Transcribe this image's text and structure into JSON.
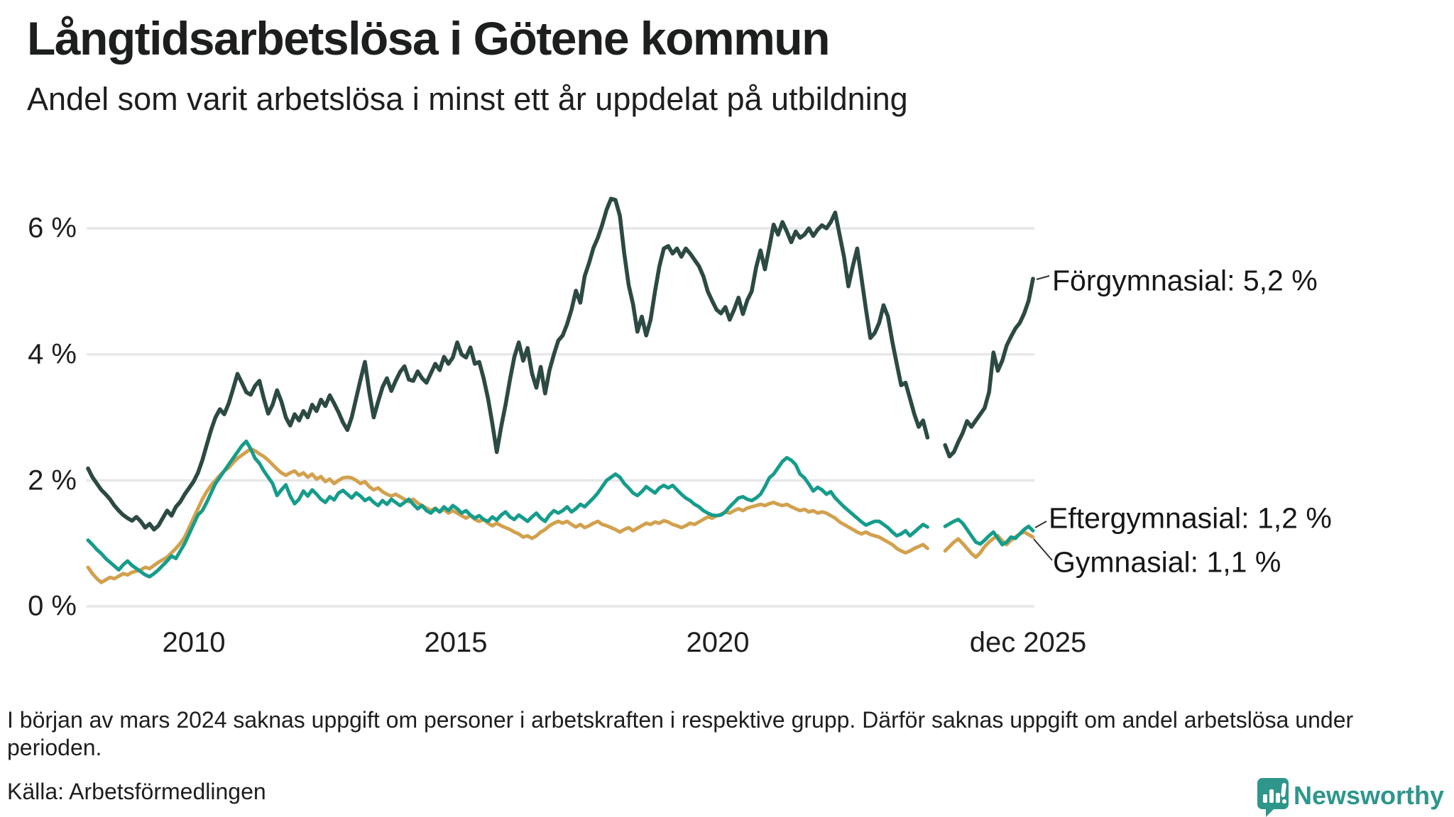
{
  "header": {
    "title": "Långtidsarbetslösa i Götene kommun",
    "subtitle": "Andel som varit arbetslösa i minst ett år uppdelat på utbildning"
  },
  "chart_data": {
    "type": "line",
    "title": "Långtidsarbetslösa i Götene kommun",
    "subtitle": "Andel som varit arbetslösa i minst ett år uppdelat på utbildning",
    "x_unit": "month",
    "x_range": [
      "2008-01",
      "2025-12"
    ],
    "ylim": [
      0,
      6.8
    ],
    "grid": "horizontal",
    "y_tick_labels": [
      "0 %",
      "2 %",
      "4 %",
      "6 %"
    ],
    "y_tick_values": [
      0,
      2,
      4,
      6
    ],
    "x_tick_labels": [
      "2010",
      "2015",
      "2020",
      "dec 2025"
    ],
    "x_tick_month_index": [
      24,
      84,
      144,
      215
    ],
    "missing_data_months": [
      "2024-01",
      "2024-02",
      "2024-03"
    ],
    "series": [
      {
        "name": "Förgymnasial",
        "label": "Förgymnasial: 5,2 %",
        "end_value": "5,2 %",
        "color": "#2c4a43",
        "values": [
          2.19,
          2.05,
          1.95,
          1.85,
          1.78,
          1.7,
          1.6,
          1.52,
          1.45,
          1.4,
          1.36,
          1.42,
          1.35,
          1.25,
          1.31,
          1.22,
          1.28,
          1.4,
          1.52,
          1.44,
          1.58,
          1.66,
          1.78,
          1.88,
          1.98,
          2.12,
          2.32,
          2.56,
          2.8,
          3.0,
          3.13,
          3.05,
          3.22,
          3.45,
          3.69,
          3.55,
          3.4,
          3.36,
          3.5,
          3.58,
          3.3,
          3.06,
          3.2,
          3.43,
          3.25,
          3.0,
          2.87,
          3.05,
          2.95,
          3.1,
          3.0,
          3.2,
          3.1,
          3.28,
          3.18,
          3.35,
          3.22,
          3.08,
          2.92,
          2.8,
          3.0,
          3.3,
          3.6,
          3.88,
          3.4,
          3.0,
          3.25,
          3.48,
          3.62,
          3.42,
          3.58,
          3.72,
          3.81,
          3.6,
          3.58,
          3.73,
          3.62,
          3.55,
          3.7,
          3.85,
          3.75,
          3.96,
          3.85,
          3.95,
          4.19,
          4.0,
          3.95,
          4.11,
          3.85,
          3.88,
          3.62,
          3.3,
          2.9,
          2.45,
          2.85,
          3.2,
          3.6,
          3.96,
          4.19,
          3.9,
          4.1,
          3.7,
          3.47,
          3.8,
          3.38,
          3.75,
          4.0,
          4.22,
          4.3,
          4.48,
          4.71,
          5.01,
          4.82,
          5.24,
          5.45,
          5.69,
          5.85,
          6.06,
          6.3,
          6.47,
          6.45,
          6.2,
          5.6,
          5.1,
          4.8,
          4.36,
          4.6,
          4.3,
          4.55,
          5.0,
          5.4,
          5.68,
          5.72,
          5.6,
          5.68,
          5.55,
          5.68,
          5.6,
          5.5,
          5.4,
          5.24,
          5.0,
          4.85,
          4.71,
          4.65,
          4.75,
          4.55,
          4.71,
          4.9,
          4.64,
          4.86,
          5.0,
          5.38,
          5.65,
          5.35,
          5.7,
          6.06,
          5.9,
          6.1,
          5.95,
          5.78,
          5.95,
          5.85,
          5.9,
          6.0,
          5.88,
          5.98,
          6.05,
          6.0,
          6.1,
          6.25,
          5.9,
          5.55,
          5.08,
          5.4,
          5.68,
          5.2,
          4.71,
          4.26,
          4.34,
          4.5,
          4.78,
          4.6,
          4.2,
          3.85,
          3.51,
          3.55,
          3.3,
          3.05,
          2.85,
          2.95,
          2.68,
          null,
          null,
          null,
          2.56,
          2.38,
          2.45,
          2.61,
          2.75,
          2.94,
          2.85,
          2.95,
          3.05,
          3.15,
          3.4,
          4.03,
          3.74,
          3.9,
          4.14,
          4.28,
          4.41,
          4.5,
          4.65,
          4.85,
          5.2
        ]
      },
      {
        "name": "Eftergymnasial",
        "label": "Eftergymnasial: 1,2 %",
        "end_value": "1,2 %",
        "color": "#169c8b",
        "values": [
          1.05,
          0.98,
          0.9,
          0.84,
          0.76,
          0.7,
          0.64,
          0.58,
          0.66,
          0.72,
          0.65,
          0.6,
          0.55,
          0.5,
          0.47,
          0.52,
          0.58,
          0.65,
          0.72,
          0.8,
          0.76,
          0.88,
          1.0,
          1.15,
          1.3,
          1.45,
          1.52,
          1.65,
          1.8,
          1.95,
          2.05,
          2.15,
          2.25,
          2.35,
          2.45,
          2.55,
          2.62,
          2.5,
          2.35,
          2.27,
          2.15,
          2.05,
          1.95,
          1.76,
          1.85,
          1.93,
          1.75,
          1.63,
          1.7,
          1.83,
          1.75,
          1.85,
          1.78,
          1.7,
          1.65,
          1.74,
          1.69,
          1.8,
          1.84,
          1.78,
          1.72,
          1.8,
          1.75,
          1.68,
          1.72,
          1.65,
          1.6,
          1.68,
          1.62,
          1.7,
          1.65,
          1.6,
          1.65,
          1.7,
          1.62,
          1.55,
          1.6,
          1.52,
          1.48,
          1.55,
          1.5,
          1.58,
          1.52,
          1.6,
          1.55,
          1.48,
          1.52,
          1.45,
          1.4,
          1.44,
          1.38,
          1.35,
          1.42,
          1.37,
          1.45,
          1.5,
          1.42,
          1.38,
          1.45,
          1.4,
          1.35,
          1.42,
          1.48,
          1.4,
          1.35,
          1.45,
          1.52,
          1.48,
          1.52,
          1.58,
          1.5,
          1.55,
          1.62,
          1.58,
          1.65,
          1.72,
          1.8,
          1.9,
          2.0,
          2.05,
          2.1,
          2.05,
          1.95,
          1.88,
          1.8,
          1.76,
          1.82,
          1.9,
          1.85,
          1.8,
          1.88,
          1.92,
          1.88,
          1.92,
          1.85,
          1.78,
          1.72,
          1.68,
          1.62,
          1.58,
          1.52,
          1.48,
          1.45,
          1.44,
          1.45,
          1.5,
          1.58,
          1.65,
          1.72,
          1.74,
          1.7,
          1.68,
          1.72,
          1.78,
          1.9,
          2.04,
          2.1,
          2.2,
          2.3,
          2.36,
          2.32,
          2.25,
          2.1,
          2.04,
          1.94,
          1.83,
          1.89,
          1.85,
          1.78,
          1.82,
          1.72,
          1.65,
          1.58,
          1.52,
          1.46,
          1.4,
          1.34,
          1.29,
          1.32,
          1.35,
          1.35,
          1.3,
          1.25,
          1.18,
          1.12,
          1.15,
          1.2,
          1.12,
          1.18,
          1.24,
          1.3,
          1.26,
          null,
          null,
          null,
          1.27,
          1.31,
          1.35,
          1.38,
          1.32,
          1.22,
          1.12,
          1.02,
          0.99,
          1.05,
          1.12,
          1.18,
          1.08,
          0.98,
          1.02,
          1.1,
          1.08,
          1.15,
          1.22,
          1.27,
          1.2
        ]
      },
      {
        "name": "Gymnasial",
        "label": "Gymnasial: 1,1 %",
        "end_value": "1,1 %",
        "color": "#d2a14e",
        "values": [
          0.62,
          0.52,
          0.44,
          0.38,
          0.42,
          0.46,
          0.44,
          0.48,
          0.52,
          0.5,
          0.54,
          0.56,
          0.58,
          0.62,
          0.6,
          0.65,
          0.7,
          0.74,
          0.78,
          0.85,
          0.92,
          1.0,
          1.1,
          1.25,
          1.4,
          1.55,
          1.7,
          1.82,
          1.92,
          2.0,
          2.08,
          2.15,
          2.2,
          2.28,
          2.35,
          2.4,
          2.45,
          2.5,
          2.47,
          2.42,
          2.38,
          2.32,
          2.25,
          2.18,
          2.12,
          2.08,
          2.12,
          2.15,
          2.08,
          2.12,
          2.05,
          2.1,
          2.02,
          2.06,
          1.98,
          2.02,
          1.95,
          2.0,
          2.04,
          2.05,
          2.04,
          2.0,
          1.95,
          1.98,
          1.9,
          1.85,
          1.88,
          1.82,
          1.78,
          1.75,
          1.78,
          1.74,
          1.7,
          1.66,
          1.7,
          1.64,
          1.6,
          1.56,
          1.52,
          1.56,
          1.5,
          1.54,
          1.48,
          1.52,
          1.48,
          1.44,
          1.4,
          1.44,
          1.38,
          1.35,
          1.38,
          1.32,
          1.28,
          1.32,
          1.28,
          1.25,
          1.22,
          1.18,
          1.15,
          1.1,
          1.12,
          1.08,
          1.12,
          1.18,
          1.22,
          1.28,
          1.32,
          1.35,
          1.32,
          1.35,
          1.3,
          1.26,
          1.3,
          1.25,
          1.28,
          1.32,
          1.35,
          1.3,
          1.28,
          1.25,
          1.22,
          1.18,
          1.22,
          1.25,
          1.2,
          1.24,
          1.28,
          1.32,
          1.3,
          1.34,
          1.32,
          1.36,
          1.34,
          1.3,
          1.28,
          1.25,
          1.28,
          1.32,
          1.3,
          1.34,
          1.38,
          1.42,
          1.4,
          1.44,
          1.46,
          1.5,
          1.48,
          1.52,
          1.55,
          1.52,
          1.56,
          1.58,
          1.6,
          1.62,
          1.6,
          1.63,
          1.65,
          1.62,
          1.6,
          1.62,
          1.58,
          1.55,
          1.52,
          1.54,
          1.5,
          1.52,
          1.48,
          1.5,
          1.48,
          1.44,
          1.4,
          1.34,
          1.3,
          1.26,
          1.22,
          1.18,
          1.15,
          1.18,
          1.14,
          1.12,
          1.1,
          1.06,
          1.02,
          0.98,
          0.92,
          0.88,
          0.85,
          0.88,
          0.92,
          0.95,
          0.98,
          0.92,
          null,
          null,
          null,
          0.88,
          0.95,
          1.02,
          1.07,
          1.0,
          0.92,
          0.84,
          0.78,
          0.85,
          0.95,
          1.02,
          1.08,
          1.12,
          1.04,
          0.98,
          1.05,
          1.1,
          1.15,
          1.18,
          1.14,
          1.1
        ]
      }
    ],
    "colors": {
      "grid": "#e7e7ea",
      "text": "#1d1f1e"
    }
  },
  "footer": {
    "footnote": "I början av mars 2024 saknas uppgift om personer i arbetskraften i respektive grupp. Därför saknas uppgift om andel arbetslösa under perioden.",
    "source": "Källa: Arbetsförmedlingen",
    "logo_text": "Newsworthy",
    "logo_color": "#2e968b"
  }
}
